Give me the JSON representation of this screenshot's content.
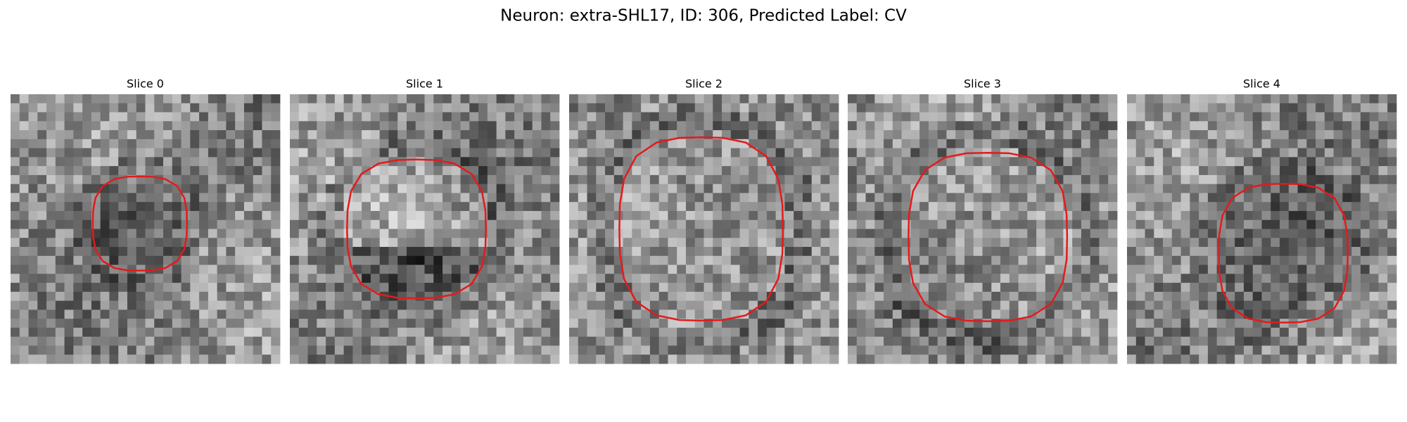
{
  "title": "Neuron: extra-SHL17, ID: 306, Predicted Label: CV",
  "panels": [
    {
      "title": "Slice 0"
    },
    {
      "title": "Slice 1"
    },
    {
      "title": "Slice 2"
    },
    {
      "title": "Slice 3"
    },
    {
      "title": "Slice 4"
    }
  ]
}
